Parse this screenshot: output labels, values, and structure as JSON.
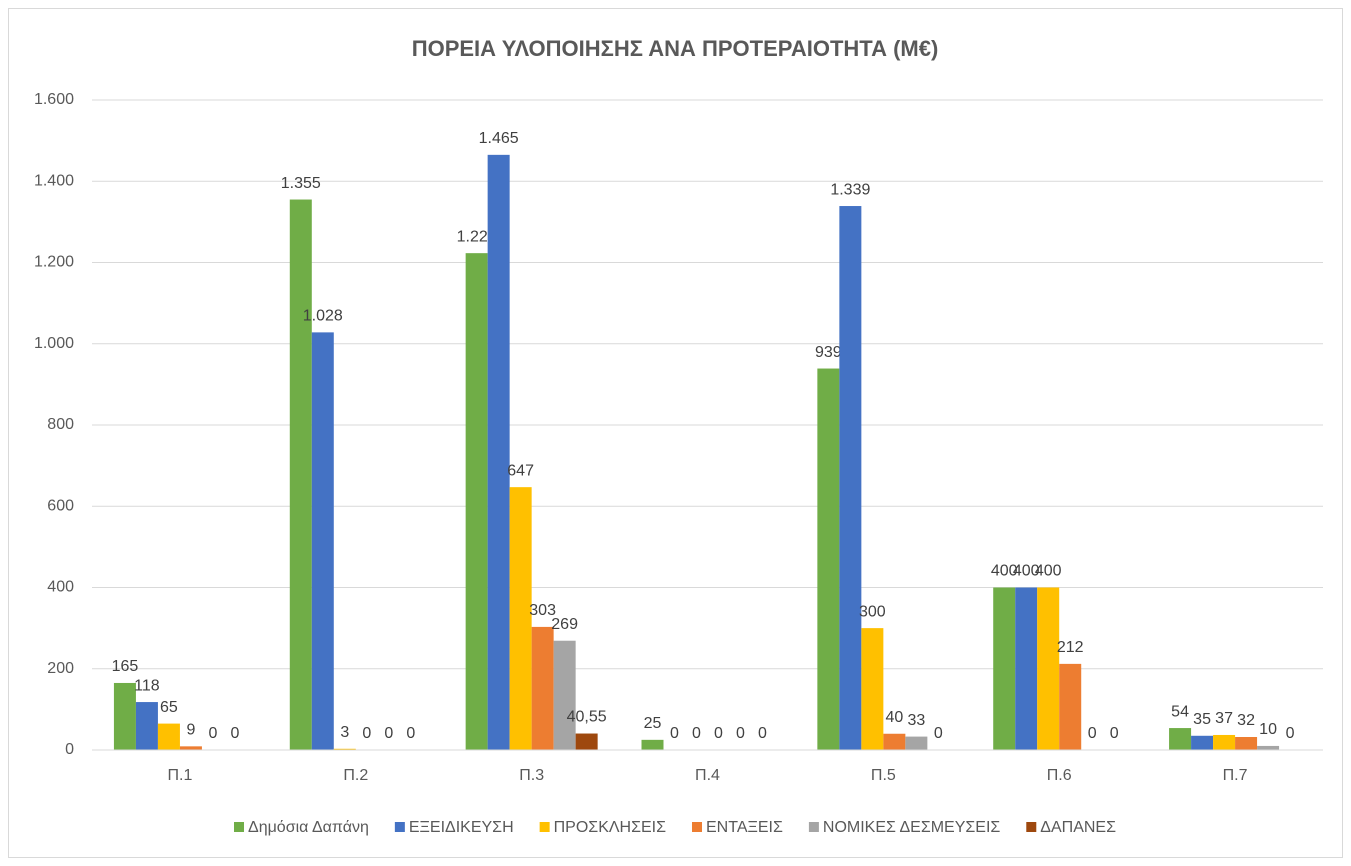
{
  "chart_data": {
    "type": "bar",
    "title": "ΠΟΡΕΙΑ ΥΛΟΠΟΙΗΣΗΣ ΑΝΑ ΠΡΟΤΕΡΑΙΟΤΗΤΑ (Μ€)",
    "categories": [
      "Π.1",
      "Π.2",
      "Π.3",
      "Π.4",
      "Π.5",
      "Π.6",
      "Π.7"
    ],
    "series": [
      {
        "name": "Δημόσια Δαπάνη",
        "color": "#70ad47",
        "values": [
          165,
          1355,
          1223,
          25,
          939,
          400,
          54
        ],
        "value_labels": [
          "165",
          "1.355",
          "1.223",
          "25",
          "939",
          "400",
          "54"
        ]
      },
      {
        "name": "ΕΞΕΙΔΙΚΕΥΣΗ",
        "color": "#4472c4",
        "values": [
          118,
          1028,
          1465,
          0,
          1339,
          400,
          35
        ],
        "value_labels": [
          "118",
          "1.028",
          "1.465",
          "0",
          "1.339",
          "400",
          "35"
        ]
      },
      {
        "name": "ΠΡΟΣΚΛΗΣΕΙΣ",
        "color": "#ffc000",
        "values": [
          65,
          3,
          647,
          0,
          300,
          400,
          37
        ]
      },
      {
        "name": "ΕΝΤΑΞΕΙΣ",
        "color": "#ed7d31",
        "values": [
          9,
          0,
          303,
          0,
          40,
          212,
          32
        ]
      },
      {
        "name": "ΝΟΜΙΚΕΣ ΔΕΣΜΕΥΣΕΙΣ",
        "color": "#a5a5a5",
        "values": [
          0,
          0,
          269,
          0,
          33,
          0,
          10
        ]
      },
      {
        "name": "ΔΑΠΑΝΕΣ",
        "color": "#9e480e",
        "values": [
          0,
          0,
          40.55,
          0,
          0,
          0,
          0
        ],
        "value_labels": [
          "0",
          "0",
          "40,55",
          "0",
          "0",
          "0",
          "0"
        ]
      }
    ],
    "ylim": [
      0,
      1600
    ],
    "yticks": [
      0,
      200,
      400,
      600,
      800,
      {
        "value": 1000,
        "label": "1.000"
      },
      {
        "value": 1200,
        "label": "1.200"
      },
      {
        "value": 1400,
        "label": "1.400"
      },
      {
        "value": 1600,
        "label": "1.600"
      }
    ],
    "grid": true,
    "legend": "bottom"
  }
}
